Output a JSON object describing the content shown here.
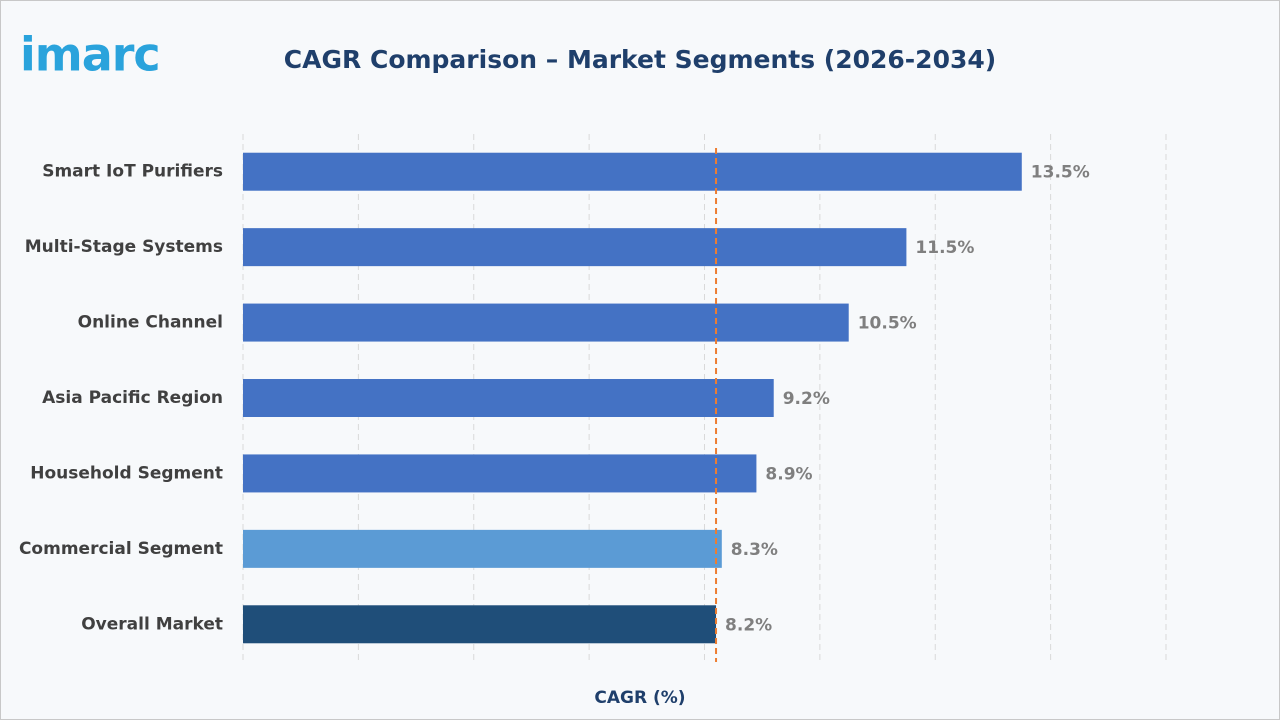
{
  "logo": "imarc",
  "chart_data": {
    "type": "barh",
    "title": "CAGR Comparison – Market Segments (2026-2034)",
    "x_label": "CAGR (%)",
    "categories": [
      "Smart IoT Purifiers",
      "Multi-Stage Systems",
      "Online Channel",
      "Asia Pacific Region",
      "Household Segment",
      "Commercial Segment",
      "Overall Market"
    ],
    "values": [
      13.5,
      11.5,
      10.5,
      9.2,
      8.9,
      8.3,
      8.2
    ],
    "value_labels": [
      "13.5%",
      "11.5%",
      "10.5%",
      "9.2%",
      "8.9%",
      "8.3%",
      "8.2%"
    ],
    "colors": [
      "#4472c4",
      "#4472c4",
      "#4472c4",
      "#4472c4",
      "#4472c4",
      "#5b9bd5",
      "#1f4e79"
    ],
    "xlim": [
      0,
      16
    ],
    "xticks": [
      0,
      2,
      4,
      6,
      8,
      10,
      12,
      14,
      16
    ],
    "grid": true,
    "reference_value": 8.2,
    "reference_color": "#ed7d31"
  }
}
